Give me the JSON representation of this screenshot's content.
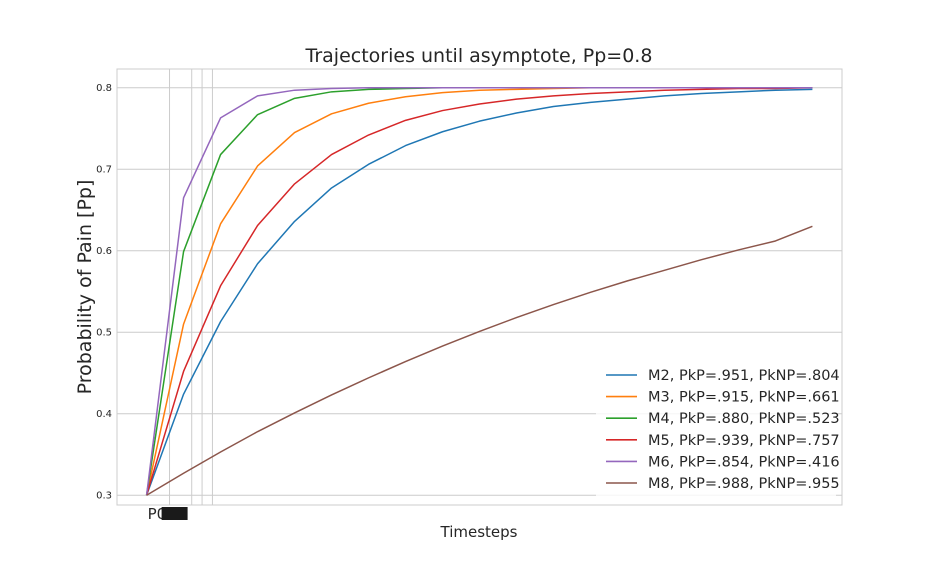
{
  "chart_data": {
    "type": "line",
    "title": "Trajectories until asymptote, Pp=0.8",
    "xlabel": "Timesteps",
    "ylabel": "Probability of Pain [Pp]",
    "ylim": [
      0.288,
      0.823
    ],
    "xlim": [
      -0.8,
      18.8
    ],
    "yticks": [
      0.3,
      0.4,
      0.5,
      0.6,
      0.7,
      0.8
    ],
    "xtick_first_label": "P0",
    "grid": true,
    "legend_position": "lower-right",
    "series": [
      {
        "name": "M2, PkP=.951, PkNP=.804",
        "color": "#1f77b4",
        "values": [
          0.3,
          0.424,
          0.513,
          0.584,
          0.636,
          0.677,
          0.706,
          0.729,
          0.746,
          0.759,
          0.769,
          0.777,
          0.782,
          0.786,
          0.79,
          0.793,
          0.795,
          0.797,
          0.798
        ]
      },
      {
        "name": "M3, PkP=.915, PkNP=.661",
        "color": "#ff7f0e",
        "values": [
          0.3,
          0.51,
          0.633,
          0.704,
          0.745,
          0.768,
          0.781,
          0.789,
          0.794,
          0.797,
          0.798,
          0.799,
          0.8,
          0.8,
          0.8,
          0.8,
          0.8,
          0.8,
          0.8
        ]
      },
      {
        "name": "M4, PkP=.880, PkNP=.523",
        "color": "#2ca02c",
        "values": [
          0.3,
          0.599,
          0.718,
          0.767,
          0.787,
          0.795,
          0.798,
          0.799,
          0.8,
          0.8,
          0.8,
          0.8,
          0.8,
          0.8,
          0.8,
          0.8,
          0.8,
          0.8,
          0.8
        ]
      },
      {
        "name": "M5, PkP=.939, PkNP=.757",
        "color": "#d62728",
        "values": [
          0.3,
          0.452,
          0.557,
          0.631,
          0.682,
          0.718,
          0.742,
          0.76,
          0.772,
          0.78,
          0.786,
          0.79,
          0.793,
          0.795,
          0.797,
          0.798,
          0.799,
          0.799,
          0.8
        ]
      },
      {
        "name": "M6, PkP=.854, PkNP=.416",
        "color": "#9467bd",
        "values": [
          0.3,
          0.665,
          0.763,
          0.79,
          0.797,
          0.799,
          0.8,
          0.8,
          0.8,
          0.8,
          0.8,
          0.8,
          0.8,
          0.8,
          0.8,
          0.8,
          0.8,
          0.8,
          0.8
        ]
      },
      {
        "name": "M8, PkP=.988, PkNP=.955",
        "color": "#8c564b",
        "values": [
          0.3,
          0.327,
          0.353,
          0.378,
          0.401,
          0.423,
          0.444,
          0.464,
          0.483,
          0.501,
          0.518,
          0.534,
          0.549,
          0.563,
          0.576,
          0.589,
          0.601,
          0.612,
          0.63
        ]
      }
    ]
  }
}
